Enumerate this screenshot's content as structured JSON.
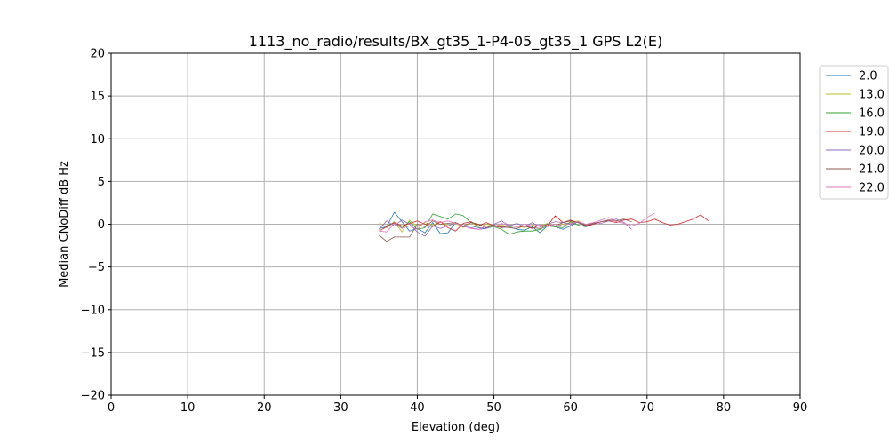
{
  "chart_data": {
    "type": "line",
    "title": "1113_no_radio/results/BX_gt35_1-P4-05_gt35_1 GPS L2(E)",
    "xlabel": "Elevation (deg)",
    "ylabel": "Median CNoDiff dB Hz",
    "xlim": [
      0,
      90
    ],
    "ylim": [
      -20,
      20
    ],
    "xticks": [
      0,
      10,
      20,
      30,
      40,
      50,
      60,
      70,
      80,
      90
    ],
    "yticks": [
      20,
      15,
      10,
      5,
      0,
      -5,
      -10,
      -15,
      -20
    ],
    "xtick_labels": [
      "0",
      "10",
      "20",
      "30",
      "40",
      "50",
      "60",
      "70",
      "80",
      "90"
    ],
    "ytick_labels": [
      "20",
      "15",
      "10",
      "5",
      "0",
      "−5",
      "−10",
      "−15",
      "−20"
    ],
    "grid": true,
    "legend_position": "right outside",
    "series": [
      {
        "name": "2.0",
        "color": "#1f77b4",
        "x": [
          35,
          36,
          37,
          38,
          39,
          40,
          41,
          42,
          43,
          44,
          45,
          46,
          47,
          48,
          49,
          50,
          51,
          52,
          53,
          54,
          55,
          56,
          57,
          58,
          59,
          60,
          61,
          62,
          63
        ],
        "y": [
          -0.5,
          -0.3,
          1.4,
          0.3,
          -0.8,
          -0.5,
          -1.0,
          0.2,
          -1.1,
          -1.0,
          0.2,
          -0.3,
          -0.2,
          -0.4,
          -0.5,
          -0.2,
          -0.4,
          -0.3,
          -0.6,
          -0.7,
          -0.3,
          -1.0,
          -0.2,
          -0.3,
          -0.6,
          -0.2,
          0.3,
          -0.3,
          0.0
        ]
      },
      {
        "name": "13.0",
        "color": "#bcbd22",
        "x": [
          35,
          36,
          37,
          38,
          39,
          40,
          41,
          42,
          43,
          44,
          45,
          46,
          47,
          48,
          49,
          50,
          51,
          52,
          53,
          54,
          55,
          56,
          57,
          58,
          59,
          60,
          61,
          62,
          63
        ],
        "y": [
          0.2,
          -0.4,
          0.3,
          -0.9,
          0.5,
          -0.3,
          0.2,
          -0.1,
          0.3,
          -0.2,
          0.1,
          -0.4,
          0.2,
          -0.3,
          0.0,
          -0.2,
          -0.1,
          -0.3,
          -0.2,
          -0.4,
          -0.1,
          -0.2,
          0.1,
          -0.3,
          0.0,
          0.2,
          0.4,
          -0.1,
          0.1
        ]
      },
      {
        "name": "16.0",
        "color": "#2ca02c",
        "x": [
          36,
          37,
          38,
          39,
          40,
          41,
          42,
          43,
          44,
          45,
          46,
          47,
          48,
          49,
          50,
          51,
          52,
          53,
          54,
          55,
          56,
          57,
          58,
          59,
          60,
          61,
          62
        ],
        "y": [
          -0.2,
          0.2,
          -0.4,
          0.3,
          -0.6,
          -0.4,
          1.2,
          0.9,
          0.6,
          1.2,
          1.0,
          0.2,
          0.0,
          -0.4,
          -0.3,
          -0.6,
          -1.2,
          -0.9,
          -0.8,
          -0.8,
          -0.6,
          -0.2,
          -0.3,
          -0.4,
          0.3,
          -0.1,
          -0.3
        ]
      },
      {
        "name": "19.0",
        "color": "#d62728",
        "x": [
          35,
          36,
          37,
          38,
          39,
          40,
          41,
          42,
          43,
          44,
          45,
          46,
          47,
          48,
          49,
          50,
          51,
          52,
          53,
          54,
          55,
          56,
          57,
          58,
          59,
          60,
          61,
          62,
          63,
          64,
          65,
          66,
          67,
          68,
          69,
          70,
          71,
          72,
          73,
          74,
          75,
          76,
          77,
          78
        ],
        "y": [
          -0.8,
          -0.3,
          0.2,
          -0.2,
          0.1,
          0.4,
          0.0,
          -0.3,
          0.3,
          -0.4,
          -0.8,
          0.1,
          0.3,
          -0.2,
          0.2,
          -0.2,
          -0.4,
          -0.1,
          -0.3,
          -0.2,
          -0.5,
          -0.1,
          -0.2,
          1.0,
          0.2,
          0.4,
          0.2,
          -0.2,
          0.0,
          0.3,
          0.4,
          0.2,
          0.5,
          0.6,
          0.2,
          0.3,
          0.6,
          0.2,
          -0.1,
          0.0,
          0.3,
          0.6,
          1.1,
          0.4
        ]
      },
      {
        "name": "20.0",
        "color": "#9467bd",
        "x": [
          35,
          36,
          37,
          38,
          39,
          40,
          41,
          42,
          43,
          44,
          45,
          46,
          47,
          48,
          49,
          50,
          51,
          52,
          53,
          54,
          55,
          56,
          57,
          58,
          59,
          60,
          61,
          62,
          63,
          64,
          65,
          66,
          67,
          68
        ],
        "y": [
          -0.6,
          0.4,
          -0.2,
          0.5,
          0.0,
          -0.9,
          -1.4,
          -0.2,
          -0.5,
          -0.2,
          0.2,
          -0.3,
          -0.4,
          -0.6,
          -0.5,
          0.0,
          0.4,
          -0.2,
          0.1,
          -0.3,
          0.2,
          -0.3,
          0.0,
          0.3,
          0.2,
          0.0,
          0.3,
          -0.1,
          0.2,
          0.1,
          0.4,
          0.6,
          0.2,
          -0.6
        ]
      },
      {
        "name": "21.0",
        "color": "#8c564b",
        "x": [
          35,
          36,
          37,
          38,
          39,
          40,
          41,
          42,
          43,
          44,
          45,
          46,
          47,
          48,
          49,
          50,
          51,
          52,
          53,
          54,
          55,
          56,
          57,
          58,
          59,
          60,
          61,
          62,
          63,
          64,
          65,
          66,
          67,
          68
        ],
        "y": [
          -1.3,
          -2.0,
          -1.5,
          -1.5,
          -1.5,
          0.0,
          -0.3,
          0.4,
          0.0,
          0.1,
          0.2,
          -0.2,
          0.2,
          0.0,
          -0.4,
          -0.1,
          -0.3,
          -0.4,
          -0.5,
          -0.2,
          -0.4,
          -0.5,
          0.0,
          -0.2,
          0.2,
          0.5,
          0.2,
          -0.1,
          0.1,
          0.3,
          0.5,
          0.4,
          0.6,
          0.3
        ]
      },
      {
        "name": "22.0",
        "color": "#e377c2",
        "x": [
          35,
          36,
          37,
          38,
          39,
          40,
          41,
          42,
          43,
          44,
          45,
          46,
          47,
          48,
          49,
          50,
          51,
          52,
          53,
          54,
          55,
          56,
          57,
          58,
          59,
          60,
          61,
          62,
          63,
          64,
          65,
          66,
          67,
          68,
          69,
          70,
          71
        ],
        "y": [
          -0.8,
          -0.9,
          0.1,
          -0.5,
          -0.2,
          -0.6,
          0.3,
          0.5,
          0.2,
          0.4,
          0.1,
          -0.2,
          -0.5,
          -0.6,
          -0.2,
          -0.3,
          0.1,
          -0.2,
          -0.3,
          0.0,
          -0.2,
          -0.1,
          -0.3,
          0.0,
          -0.2,
          0.1,
          0.3,
          0.0,
          0.2,
          0.5,
          0.8,
          0.3,
          0.1,
          -0.2,
          0.1,
          0.8,
          1.3
        ]
      }
    ]
  }
}
